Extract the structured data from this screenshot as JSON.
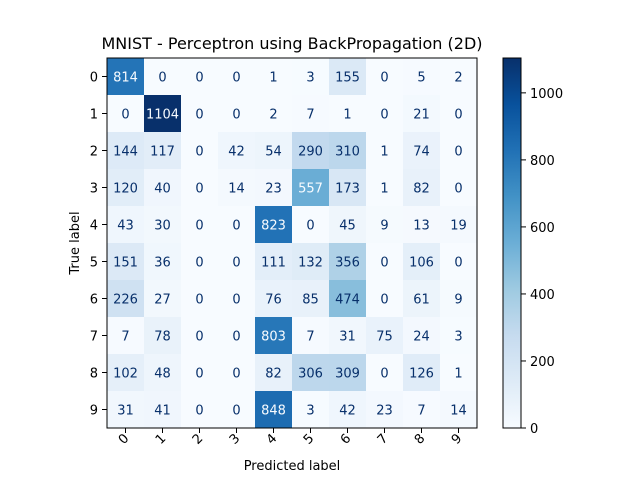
{
  "chart_data": {
    "type": "heatmap",
    "title": "MNIST - Perceptron using BackPropagation (2D)",
    "xlabel": "Predicted label",
    "ylabel": "True label",
    "x_ticks": [
      "0",
      "1",
      "2",
      "3",
      "4",
      "5",
      "6",
      "7",
      "8",
      "9"
    ],
    "y_ticks": [
      "0",
      "1",
      "2",
      "3",
      "4",
      "5",
      "6",
      "7",
      "8",
      "9"
    ],
    "matrix": [
      [
        814,
        0,
        0,
        0,
        1,
        3,
        155,
        0,
        5,
        2
      ],
      [
        0,
        1104,
        0,
        0,
        2,
        7,
        1,
        0,
        21,
        0
      ],
      [
        144,
        117,
        0,
        42,
        54,
        290,
        310,
        1,
        74,
        0
      ],
      [
        120,
        40,
        0,
        14,
        23,
        557,
        173,
        1,
        82,
        0
      ],
      [
        43,
        30,
        0,
        0,
        823,
        0,
        45,
        9,
        13,
        19
      ],
      [
        151,
        36,
        0,
        0,
        111,
        132,
        356,
        0,
        106,
        0
      ],
      [
        226,
        27,
        0,
        0,
        76,
        85,
        474,
        0,
        61,
        9
      ],
      [
        7,
        78,
        0,
        0,
        803,
        7,
        31,
        75,
        24,
        3
      ],
      [
        102,
        48,
        0,
        0,
        82,
        306,
        309,
        0,
        126,
        1
      ],
      [
        31,
        41,
        0,
        0,
        848,
        3,
        42,
        23,
        7,
        14
      ]
    ],
    "colormap": "Blues",
    "vmin": 0,
    "vmax": 1104,
    "colorbar_ticks": [
      "0",
      "200",
      "400",
      "600",
      "800",
      "1000"
    ],
    "grid": false
  }
}
